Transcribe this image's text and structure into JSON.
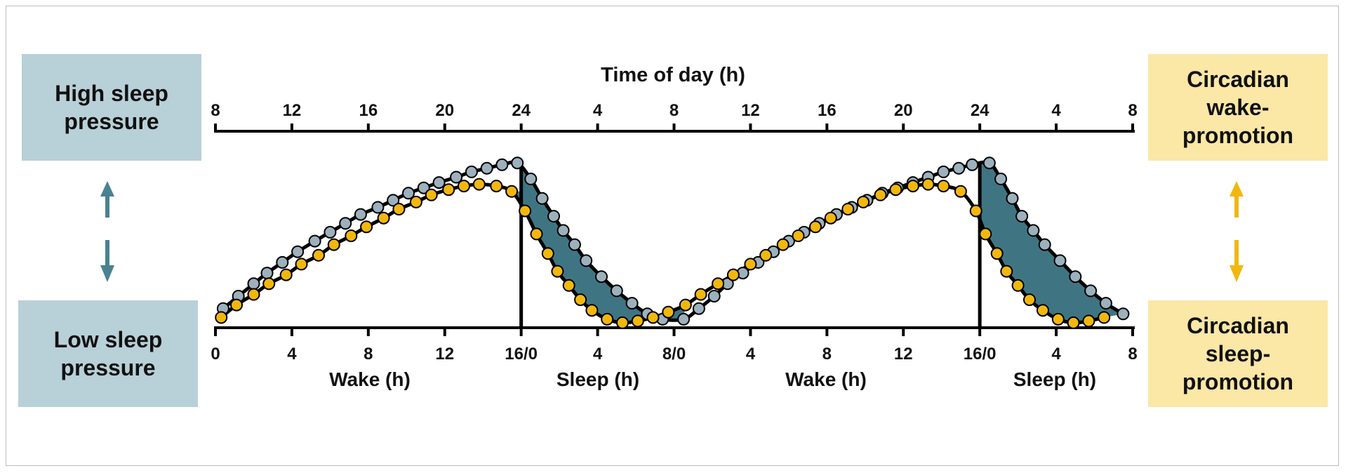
{
  "left_labels": {
    "high": "High sleep\npressure",
    "low": "Low sleep\npressure",
    "arrow_color": "#4a8290"
  },
  "right_labels": {
    "wake": "Circadian\nwake-\npromotion",
    "sleep": "Circadian\nsleep-\npromotion",
    "arrow_color": "#f2b70f"
  },
  "top_axis": {
    "title": "Time of day (h)",
    "ticks": [
      "8",
      "12",
      "16",
      "20",
      "24",
      "4",
      "8",
      "12",
      "16",
      "20",
      "24",
      "4",
      "8"
    ]
  },
  "bottom_axis": {
    "ticks": [
      "0",
      "4",
      "8",
      "12",
      "16/0",
      "4",
      "8/0",
      "4",
      "8",
      "12",
      "16/0",
      "4",
      "8"
    ],
    "phase_labels": [
      "Wake (h)",
      "Sleep (h)",
      "Wake (h)",
      "Sleep (h)"
    ]
  },
  "chart_data": {
    "type": "line",
    "x_unit": "hours since start (wake onset at 8 h time of day)",
    "x_range": [
      0,
      48
    ],
    "y_range": [
      0,
      1
    ],
    "sleep_periods": [
      [
        16,
        24
      ],
      [
        40,
        48
      ]
    ],
    "series": [
      {
        "color": "#9db1bd",
        "x": [
          0.4,
          1.2,
          2.0,
          2.7,
          3.5,
          4.3,
          5.2,
          6.0,
          6.8,
          7.6,
          8.5,
          9.3,
          10.1,
          10.9,
          11.7,
          12.6,
          13.4,
          14.2,
          15.0,
          15.8,
          16.5,
          17.1,
          17.7,
          18.2,
          18.8,
          19.4,
          20.2,
          21.0,
          21.8,
          22.6,
          23.4,
          24.5,
          25.3,
          26.1,
          26.8,
          27.6,
          28.4,
          29.2,
          30.0,
          30.8,
          31.6,
          32.5,
          33.3,
          34.1,
          34.9,
          35.7,
          36.5,
          37.3,
          38.1,
          38.9,
          39.6,
          40.5,
          41.1,
          41.7,
          42.2,
          42.8,
          43.4,
          44.2,
          45.0,
          45.8,
          46.6,
          47.5
        ],
        "y": [
          0.1,
          0.17,
          0.24,
          0.3,
          0.36,
          0.42,
          0.48,
          0.53,
          0.58,
          0.63,
          0.67,
          0.71,
          0.75,
          0.78,
          0.81,
          0.84,
          0.87,
          0.89,
          0.91,
          0.92,
          0.83,
          0.72,
          0.62,
          0.54,
          0.46,
          0.37,
          0.28,
          0.2,
          0.13,
          0.07,
          0.04,
          0.04,
          0.1,
          0.17,
          0.24,
          0.3,
          0.36,
          0.42,
          0.48,
          0.53,
          0.58,
          0.63,
          0.67,
          0.71,
          0.75,
          0.78,
          0.81,
          0.84,
          0.87,
          0.89,
          0.91,
          0.92,
          0.83,
          0.72,
          0.62,
          0.54,
          0.46,
          0.37,
          0.28,
          0.2,
          0.13,
          0.07
        ]
      },
      {
        "color": "#f2b70f",
        "x": [
          0.3,
          1.1,
          2.0,
          2.8,
          3.7,
          4.5,
          5.4,
          6.2,
          7.1,
          7.9,
          8.8,
          9.6,
          10.5,
          11.3,
          12.2,
          13.0,
          13.8,
          14.7,
          15.5,
          16.2,
          16.8,
          17.4,
          17.9,
          18.5,
          19.1,
          19.7,
          20.5,
          21.3,
          22.1,
          22.9,
          23.7,
          24.6,
          25.4,
          26.3,
          27.1,
          28.0,
          28.8,
          29.7,
          30.5,
          31.4,
          32.2,
          33.1,
          33.9,
          34.8,
          35.6,
          36.5,
          37.3,
          38.1,
          39.0,
          39.8,
          40.3,
          40.9,
          41.4,
          42.0,
          42.6,
          43.3,
          44.1,
          44.9,
          45.7,
          46.5
        ],
        "y": [
          0.05,
          0.12,
          0.18,
          0.24,
          0.29,
          0.35,
          0.4,
          0.46,
          0.51,
          0.56,
          0.61,
          0.66,
          0.7,
          0.74,
          0.77,
          0.79,
          0.8,
          0.79,
          0.76,
          0.65,
          0.52,
          0.41,
          0.31,
          0.23,
          0.15,
          0.09,
          0.04,
          0.02,
          0.03,
          0.05,
          0.08,
          0.12,
          0.18,
          0.24,
          0.29,
          0.35,
          0.4,
          0.46,
          0.51,
          0.56,
          0.61,
          0.66,
          0.7,
          0.74,
          0.77,
          0.79,
          0.8,
          0.79,
          0.76,
          0.65,
          0.52,
          0.41,
          0.31,
          0.23,
          0.15,
          0.09,
          0.04,
          0.02,
          0.03,
          0.05
        ]
      }
    ],
    "fill_color": "#3f7583"
  }
}
